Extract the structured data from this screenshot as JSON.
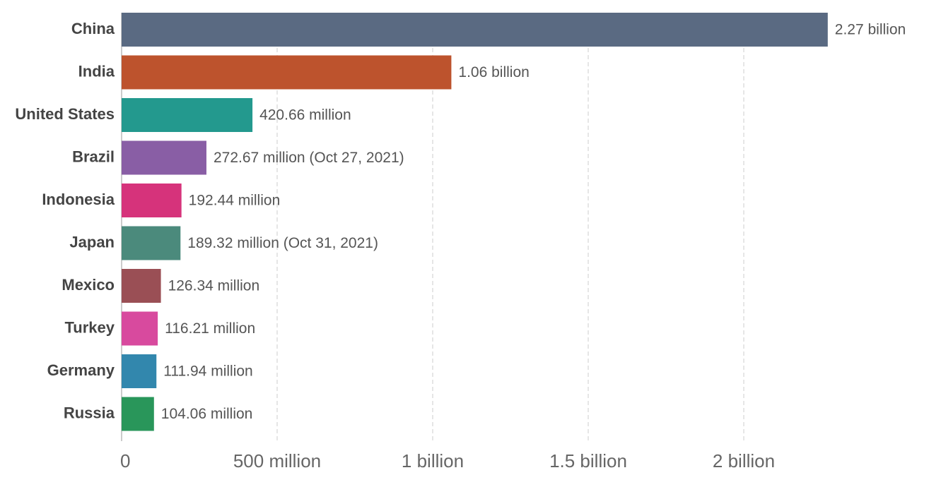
{
  "chart_data": {
    "type": "bar",
    "orientation": "horizontal",
    "categories": [
      "China",
      "India",
      "United States",
      "Brazil",
      "Indonesia",
      "Japan",
      "Mexico",
      "Turkey",
      "Germany",
      "Russia"
    ],
    "values": [
      2270000000,
      1060000000,
      420660000,
      272670000,
      192440000,
      189320000,
      126340000,
      116210000,
      111940000,
      104060000
    ],
    "value_labels": [
      "2.27 billion",
      "1.06 billion",
      "420.66 million",
      "272.67 million (Oct 27, 2021)",
      "192.44 million",
      "189.32 million (Oct 31, 2021)",
      "126.34 million",
      "116.21 million",
      "111.94 million",
      "104.06 million"
    ],
    "colors": [
      "#5a6a82",
      "#bd532d",
      "#23998e",
      "#895ea5",
      "#d6337b",
      "#4b8a7c",
      "#9a4f55",
      "#d84a9e",
      "#3287ad",
      "#29965a"
    ],
    "xlim": [
      0,
      2300000000
    ],
    "xticks": [
      0,
      {
        "value": 500000000,
        "label": "500 million"
      },
      {
        "value": 1000000000,
        "label": "1 billion"
      },
      {
        "value": 1500000000,
        "label": "1.5 billion"
      },
      {
        "value": 2000000000,
        "label": "2 billion"
      }
    ],
    "grid": true
  }
}
